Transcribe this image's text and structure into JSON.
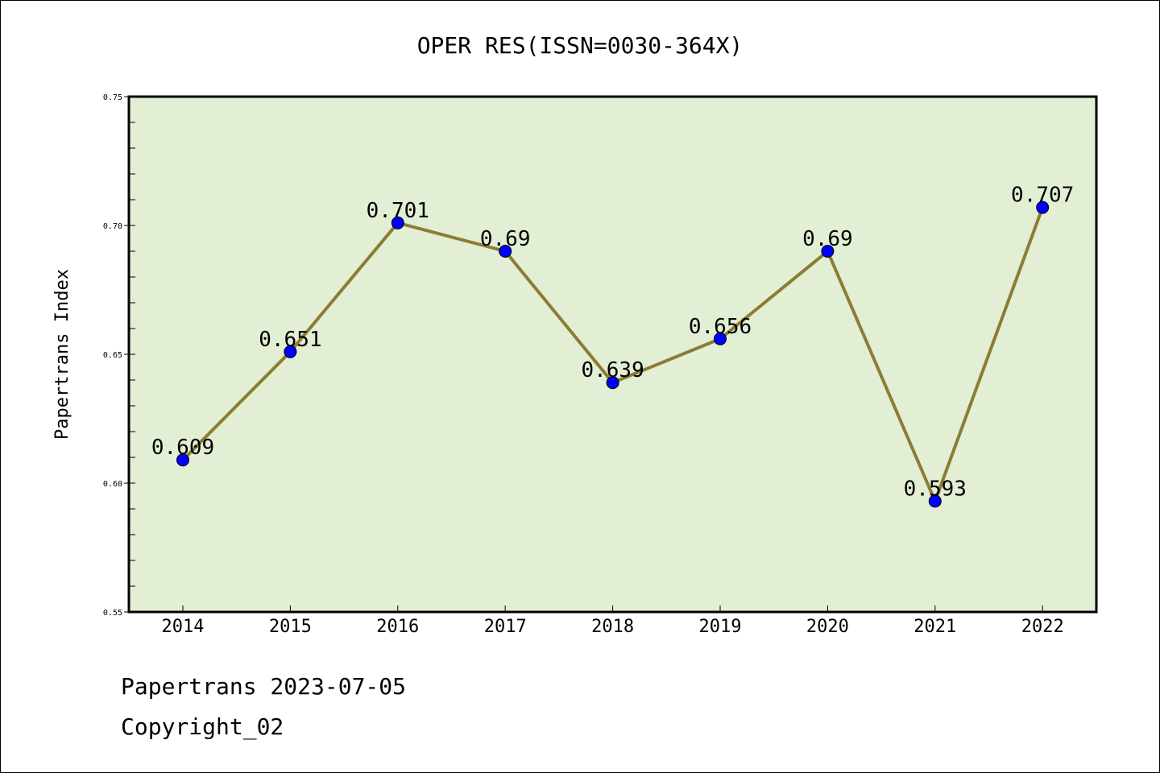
{
  "colors": {
    "plot_bg": "#e2efd5",
    "line": "#8b7d32",
    "marker": "#0000ff",
    "border": "#000000"
  },
  "footer": {
    "date_text": "Papertrans 2023-07-05",
    "copyright_text": "Copyright_02"
  },
  "chart_data": {
    "type": "line",
    "title": "OPER RES(ISSN=0030-364X)",
    "xlabel": "",
    "ylabel": "Papertrans Index",
    "categories": [
      "2014",
      "2015",
      "2016",
      "2017",
      "2018",
      "2019",
      "2020",
      "2021",
      "2022"
    ],
    "series": [
      {
        "name": "Papertrans Index",
        "values": [
          0.609,
          0.651,
          0.701,
          0.69,
          0.639,
          0.656,
          0.69,
          0.593,
          0.707
        ],
        "labels": [
          "0.609",
          "0.651",
          "0.701",
          "0.69",
          "0.639",
          "0.656",
          "0.69",
          "0.593",
          "0.707"
        ]
      }
    ],
    "ylim": [
      0.55,
      0.75
    ],
    "yticks": [
      0.55,
      0.6,
      0.65,
      0.7,
      0.75
    ],
    "ytick_labels": [
      "0.55",
      "0.60",
      "0.65",
      "0.70",
      "0.75"
    ],
    "grid": false
  }
}
